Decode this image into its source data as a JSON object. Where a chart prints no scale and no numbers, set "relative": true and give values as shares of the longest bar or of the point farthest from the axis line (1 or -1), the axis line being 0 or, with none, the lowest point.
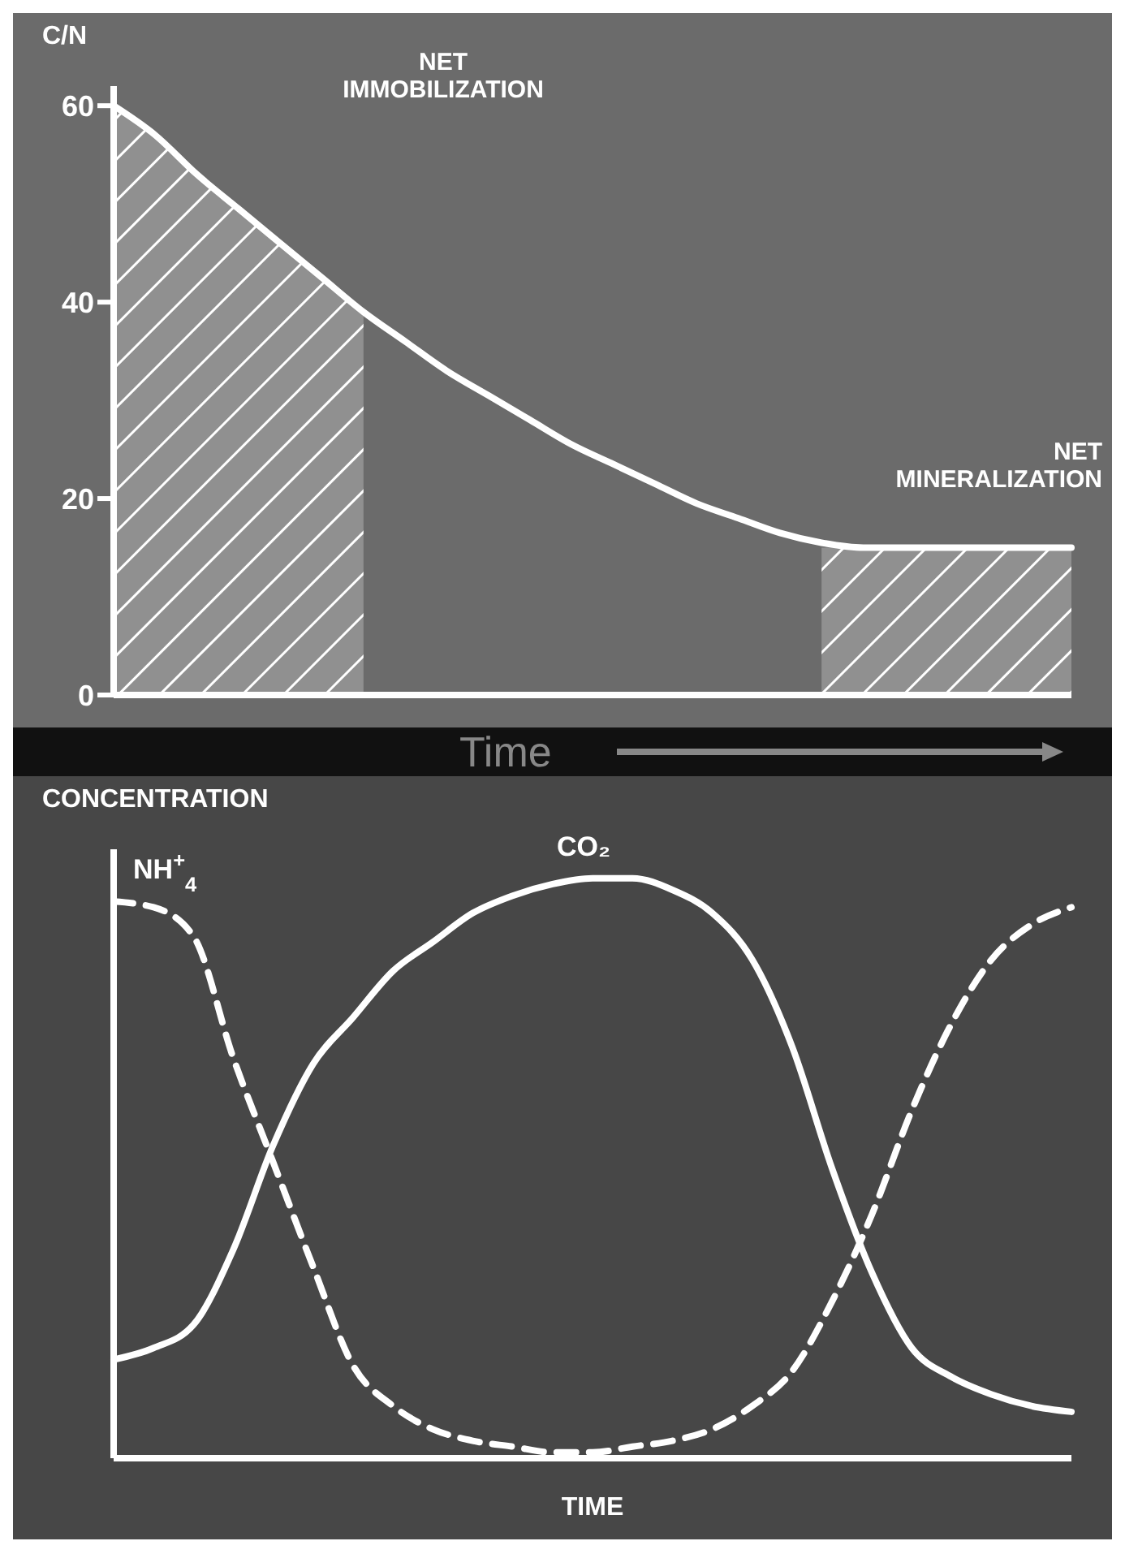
{
  "chart_data": [
    {
      "type": "line",
      "ylabel": "C/N",
      "xlabel": "Time",
      "categories": [
        null,
        null,
        null,
        null,
        null,
        null,
        null,
        null,
        null,
        null,
        null,
        null,
        null,
        null,
        null,
        null,
        null,
        null,
        null,
        null,
        null,
        null,
        null,
        null
      ],
      "ylim": [
        0,
        62
      ],
      "yticks": [
        0,
        20,
        40,
        60
      ],
      "tick_labels": "y",
      "series": [
        {
          "color": "#ffffff",
          "values": [
            60,
            57,
            53,
            49.5,
            46,
            42.5,
            39,
            36,
            33,
            30.5,
            28,
            25.5,
            23.5,
            21.5,
            19.5,
            18,
            16.5,
            15.5,
            15,
            15,
            15,
            15,
            15,
            15
          ]
        },
        {
          "type": "area",
          "color": "#ffffff",
          "values": [
            60,
            57,
            53,
            49.5,
            46,
            42.5,
            39,
            null,
            null,
            null,
            null,
            null,
            null,
            null,
            null,
            null,
            null,
            null,
            null,
            null,
            null,
            null,
            null,
            null
          ]
        },
        {
          "type": "area",
          "color": "#ffffff",
          "values": [
            null,
            null,
            null,
            null,
            null,
            null,
            null,
            null,
            null,
            null,
            null,
            null,
            null,
            null,
            null,
            null,
            null,
            15,
            15,
            15,
            15,
            15,
            15,
            15
          ]
        }
      ],
      "annotations": [
        "NET IMMOBILIZATION",
        "NET MINERALIZATION"
      ]
    },
    {
      "type": "line",
      "relative": true,
      "ylabel": "CONCENTRATION",
      "xlabel": "TIME",
      "tick_labels": false,
      "categories": [
        null,
        null,
        null,
        null,
        null,
        null,
        null,
        null,
        null,
        null,
        null,
        null,
        null,
        null,
        null,
        null,
        null,
        null,
        null,
        null,
        null,
        null,
        null,
        null,
        null
      ],
      "series": [
        {
          "name": "NH$^{+}$$_{4}$",
          "color": "#ffffff",
          "line_style": "dashed",
          "values": [
            0.96,
            0.95,
            0.9,
            0.69,
            0.51,
            0.33,
            0.16,
            0.09,
            0.05,
            0.03,
            0.02,
            0.01,
            0.01,
            0.02,
            0.03,
            0.05,
            0.09,
            0.15,
            0.27,
            0.42,
            0.6,
            0.75,
            0.86,
            0.92,
            0.95
          ]
        },
        {
          "name": "CO₂",
          "color": "#ffffff",
          "values": [
            0.17,
            0.19,
            0.23,
            0.36,
            0.54,
            0.68,
            0.76,
            0.84,
            0.89,
            0.94,
            0.97,
            0.99,
            1,
            1,
            0.98,
            0.94,
            0.86,
            0.71,
            0.5,
            0.32,
            0.19,
            0.14,
            0.11,
            0.09,
            0.08
          ]
        }
      ]
    }
  ]
}
